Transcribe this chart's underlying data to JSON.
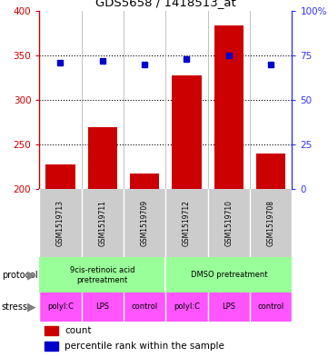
{
  "title": "GDS5658 / 1418513_at",
  "samples": [
    "GSM1519713",
    "GSM1519711",
    "GSM1519709",
    "GSM1519712",
    "GSM1519710",
    "GSM1519708"
  ],
  "counts": [
    228,
    270,
    218,
    328,
    383,
    240
  ],
  "percentiles": [
    71,
    72,
    70,
    73,
    75,
    70
  ],
  "ylim_left": [
    200,
    400
  ],
  "ylim_right": [
    0,
    100
  ],
  "yticks_left": [
    200,
    250,
    300,
    350,
    400
  ],
  "yticks_right": [
    0,
    25,
    50,
    75,
    100
  ],
  "ytick_right_labels": [
    "0",
    "25",
    "50",
    "75",
    "100%"
  ],
  "bar_color": "#cc0000",
  "dot_color": "#0000cc",
  "protocol_labels": [
    "9cis-retinoic acid\npretreatment",
    "DMSO pretreatment"
  ],
  "protocol_color": "#99ff99",
  "stress_labels": [
    "polyI:C",
    "LPS",
    "control",
    "polyI:C",
    "LPS",
    "control"
  ],
  "stress_color": "#ff55ff",
  "sample_bg_color": "#cccccc",
  "left_axis_color": "#cc0000",
  "right_axis_color": "#3333ff",
  "dotted_grid_values": [
    250,
    300,
    350
  ],
  "legend_count_color": "#cc0000",
  "legend_pct_color": "#0000cc"
}
